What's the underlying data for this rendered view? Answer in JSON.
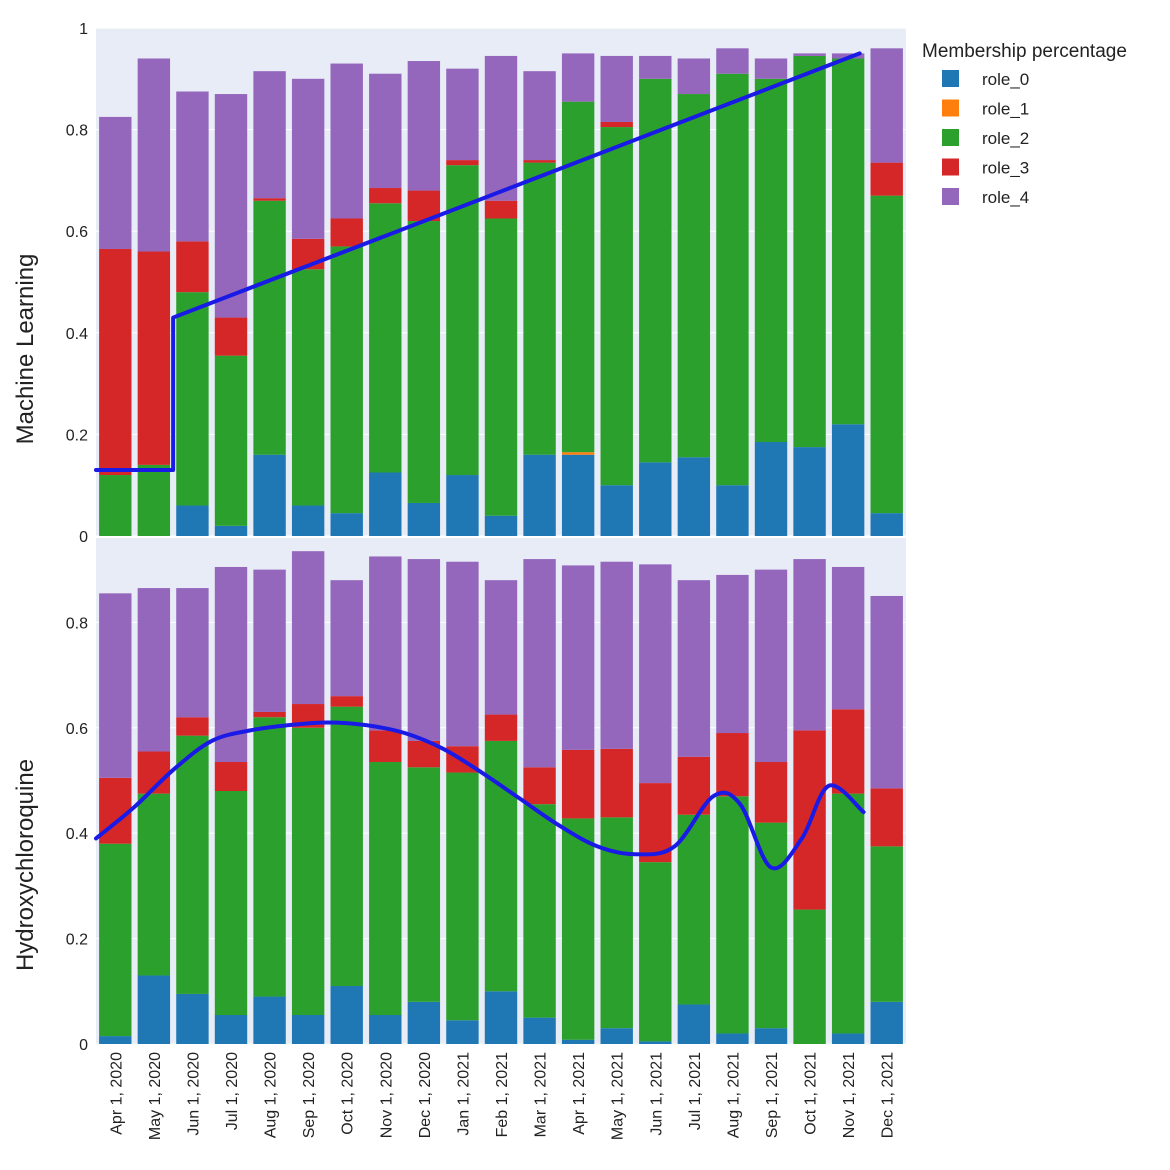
{
  "chart_data": [
    {
      "type": "bar",
      "stacked": true,
      "panel": "top",
      "ylabel": "Machine Learning",
      "ylim": [
        0,
        1
      ],
      "yticks": [
        "0",
        "0.2",
        "0.4",
        "0.6",
        "0.8",
        "1"
      ],
      "categories": [
        "Apr 1, 2020",
        "May 1, 2020",
        "Jun 1, 2020",
        "Jul 1, 2020",
        "Aug 1, 2020",
        "Sep 1, 2020",
        "Oct 1, 2020",
        "Nov 1, 2020",
        "Dec 1, 2020",
        "Jan 1, 2021",
        "Feb 1, 2021",
        "Mar 1, 2021",
        "Apr 1, 2021",
        "May 1, 2021",
        "Jun 1, 2021",
        "Jul 1, 2021",
        "Aug 1, 2021",
        "Sep 1, 2021",
        "Oct 1, 2021",
        "Nov 1, 2021",
        "Dec 1, 2021"
      ],
      "series": [
        {
          "name": "role_0",
          "values": [
            0,
            0,
            0.06,
            0.02,
            0.16,
            0.06,
            0.045,
            0.125,
            0.065,
            0.12,
            0.04,
            0.16,
            0.16,
            0.1,
            0.145,
            0.155,
            0.1,
            0.185,
            0.175,
            0.22,
            0.045
          ]
        },
        {
          "name": "role_1",
          "values": [
            0,
            0,
            0,
            0,
            0,
            0,
            0,
            0,
            0,
            0,
            0,
            0,
            0.005,
            0,
            0,
            0,
            0,
            0,
            0,
            0,
            0
          ]
        },
        {
          "name": "role_2",
          "values": [
            0.12,
            0.14,
            0.42,
            0.335,
            0.5,
            0.465,
            0.525,
            0.53,
            0.555,
            0.61,
            0.585,
            0.575,
            0.69,
            0.705,
            0.755,
            0.715,
            0.81,
            0.715,
            0.77,
            0.72,
            0.625
          ]
        },
        {
          "name": "role_3",
          "values": [
            0.445,
            0.42,
            0.1,
            0.075,
            0.005,
            0.06,
            0.055,
            0.03,
            0.06,
            0.01,
            0.035,
            0.005,
            0,
            0.01,
            0,
            0,
            0,
            0,
            0,
            0,
            0.065
          ]
        },
        {
          "name": "role_4",
          "values": [
            0.26,
            0.38,
            0.295,
            0.44,
            0.25,
            0.315,
            0.305,
            0.225,
            0.255,
            0.18,
            0.285,
            0.175,
            0.095,
            0.13,
            0.045,
            0.07,
            0.05,
            0.04,
            0.005,
            0.01,
            0.225
          ]
        }
      ],
      "trend_line": {
        "color": "#1a1ae6",
        "points": [
          {
            "x": -0.5,
            "y": 0.13
          },
          {
            "x": 1.5,
            "y": 0.13
          },
          {
            "x": 1.5,
            "y": 0.43
          },
          {
            "x": 19.3,
            "y": 0.95
          }
        ]
      }
    },
    {
      "type": "bar",
      "stacked": true,
      "panel": "bottom",
      "ylabel": "Hydroxychloroquine",
      "ylim": [
        0,
        0.96
      ],
      "yticks": [
        "0",
        "0.2",
        "0.4",
        "0.6",
        "0.8"
      ],
      "categories": [
        "Apr 1, 2020",
        "May 1, 2020",
        "Jun 1, 2020",
        "Jul 1, 2020",
        "Aug 1, 2020",
        "Sep 1, 2020",
        "Oct 1, 2020",
        "Nov 1, 2020",
        "Dec 1, 2020",
        "Jan 1, 2021",
        "Feb 1, 2021",
        "Mar 1, 2021",
        "Apr 1, 2021",
        "May 1, 2021",
        "Jun 1, 2021",
        "Jul 1, 2021",
        "Aug 1, 2021",
        "Sep 1, 2021",
        "Oct 1, 2021",
        "Nov 1, 2021",
        "Dec 1, 2021"
      ],
      "series": [
        {
          "name": "role_0",
          "values": [
            0.015,
            0.13,
            0.095,
            0.055,
            0.09,
            0.055,
            0.11,
            0.055,
            0.08,
            0.045,
            0.1,
            0.05,
            0.008,
            0.03,
            0.005,
            0.075,
            0.02,
            0.03,
            0,
            0.02,
            0.08
          ]
        },
        {
          "name": "role_1",
          "values": [
            0,
            0,
            0,
            0,
            0,
            0,
            0,
            0,
            0,
            0,
            0,
            0,
            0,
            0,
            0,
            0,
            0,
            0,
            0,
            0,
            0
          ]
        },
        {
          "name": "role_2",
          "values": [
            0.365,
            0.345,
            0.49,
            0.425,
            0.53,
            0.545,
            0.53,
            0.48,
            0.445,
            0.47,
            0.475,
            0.405,
            0.42,
            0.4,
            0.34,
            0.36,
            0.45,
            0.39,
            0.255,
            0.455,
            0.295
          ]
        },
        {
          "name": "role_3",
          "values": [
            0.125,
            0.08,
            0.035,
            0.055,
            0.01,
            0.045,
            0.02,
            0.06,
            0.05,
            0.05,
            0.05,
            0.07,
            0.13,
            0.13,
            0.15,
            0.11,
            0.12,
            0.115,
            0.34,
            0.16,
            0.11
          ]
        },
        {
          "name": "role_4",
          "values": [
            0.35,
            0.31,
            0.245,
            0.37,
            0.27,
            0.29,
            0.22,
            0.33,
            0.345,
            0.35,
            0.255,
            0.395,
            0.35,
            0.355,
            0.415,
            0.335,
            0.3,
            0.365,
            0.325,
            0.27,
            0.365
          ]
        }
      ],
      "trend_line": {
        "color": "#1a1ae6",
        "smooth": true,
        "points": [
          {
            "x": -0.5,
            "y": 0.39
          },
          {
            "x": 0.5,
            "y": 0.45
          },
          {
            "x": 1.5,
            "y": 0.52
          },
          {
            "x": 2.5,
            "y": 0.575
          },
          {
            "x": 3.5,
            "y": 0.595
          },
          {
            "x": 4.5,
            "y": 0.605
          },
          {
            "x": 5.5,
            "y": 0.61
          },
          {
            "x": 6.5,
            "y": 0.605
          },
          {
            "x": 7.5,
            "y": 0.59
          },
          {
            "x": 8.5,
            "y": 0.56
          },
          {
            "x": 9.5,
            "y": 0.515
          },
          {
            "x": 10.5,
            "y": 0.465
          },
          {
            "x": 11.5,
            "y": 0.415
          },
          {
            "x": 12.5,
            "y": 0.375
          },
          {
            "x": 13.5,
            "y": 0.36
          },
          {
            "x": 14.5,
            "y": 0.375
          },
          {
            "x": 15.5,
            "y": 0.47
          },
          {
            "x": 16.2,
            "y": 0.455
          },
          {
            "x": 17.0,
            "y": 0.335
          },
          {
            "x": 17.8,
            "y": 0.39
          },
          {
            "x": 18.5,
            "y": 0.49
          },
          {
            "x": 19.4,
            "y": 0.44
          }
        ]
      }
    }
  ],
  "legend": {
    "title": "Membership percentage",
    "placement": "top-right",
    "items": [
      {
        "name": "role_0",
        "color": "#1f77b4"
      },
      {
        "name": "role_1",
        "color": "#ff7f0e"
      },
      {
        "name": "role_2",
        "color": "#2ca02c"
      },
      {
        "name": "role_3",
        "color": "#d62728"
      },
      {
        "name": "role_4",
        "color": "#9467bd"
      }
    ]
  },
  "colors": {
    "plot_bg": "#e8ecf6",
    "trend_line": "#1a1ae6"
  }
}
